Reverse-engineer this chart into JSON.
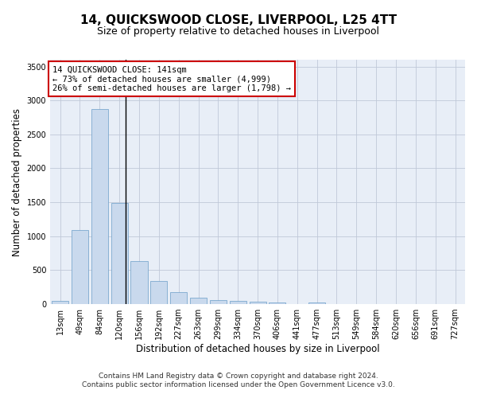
{
  "title": "14, QUICKSWOOD CLOSE, LIVERPOOL, L25 4TT",
  "subtitle": "Size of property relative to detached houses in Liverpool",
  "xlabel": "Distribution of detached houses by size in Liverpool",
  "ylabel": "Number of detached properties",
  "footer_line1": "Contains HM Land Registry data © Crown copyright and database right 2024.",
  "footer_line2": "Contains public sector information licensed under the Open Government Licence v3.0.",
  "annotation_line1": "14 QUICKSWOOD CLOSE: 141sqm",
  "annotation_line2": "← 73% of detached houses are smaller (4,999)",
  "annotation_line3": "26% of semi-detached houses are larger (1,798) →",
  "bar_color": "#c9d9ed",
  "bar_edge_color": "#6a9dc8",
  "vline_color": "#000000",
  "annotation_box_color": "#cc0000",
  "categories": [
    "13sqm",
    "49sqm",
    "84sqm",
    "120sqm",
    "156sqm",
    "192sqm",
    "227sqm",
    "263sqm",
    "299sqm",
    "334sqm",
    "370sqm",
    "406sqm",
    "441sqm",
    "477sqm",
    "513sqm",
    "549sqm",
    "584sqm",
    "620sqm",
    "656sqm",
    "691sqm",
    "727sqm"
  ],
  "values": [
    50,
    1090,
    2870,
    1490,
    635,
    345,
    175,
    90,
    65,
    45,
    35,
    25,
    0,
    30,
    0,
    0,
    0,
    0,
    0,
    0,
    0
  ],
  "vline_x_index": 3.3,
  "ylim": [
    0,
    3600
  ],
  "yticks": [
    0,
    500,
    1000,
    1500,
    2000,
    2500,
    3000,
    3500
  ],
  "background_color": "#ffffff",
  "plot_bg_color": "#e8eef7",
  "grid_color": "#c0c8d8",
  "title_fontsize": 11,
  "subtitle_fontsize": 9,
  "axis_label_fontsize": 8.5,
  "tick_fontsize": 7,
  "annotation_fontsize": 7.5,
  "footer_fontsize": 6.5
}
